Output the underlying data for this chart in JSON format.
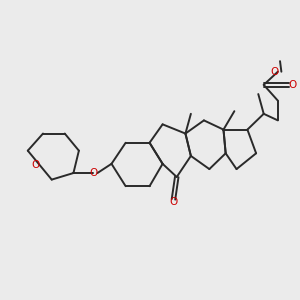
{
  "bg_color": "#ebebeb",
  "bond_color": "#2a2a2a",
  "heteroatom_color": "#cc0000",
  "lw": 1.4,
  "fs": 7.5,
  "xlim": [
    0,
    10
  ],
  "ylim": [
    2.0,
    8.5
  ],
  "figsize": [
    3.0,
    3.0
  ],
  "dpi": 100
}
